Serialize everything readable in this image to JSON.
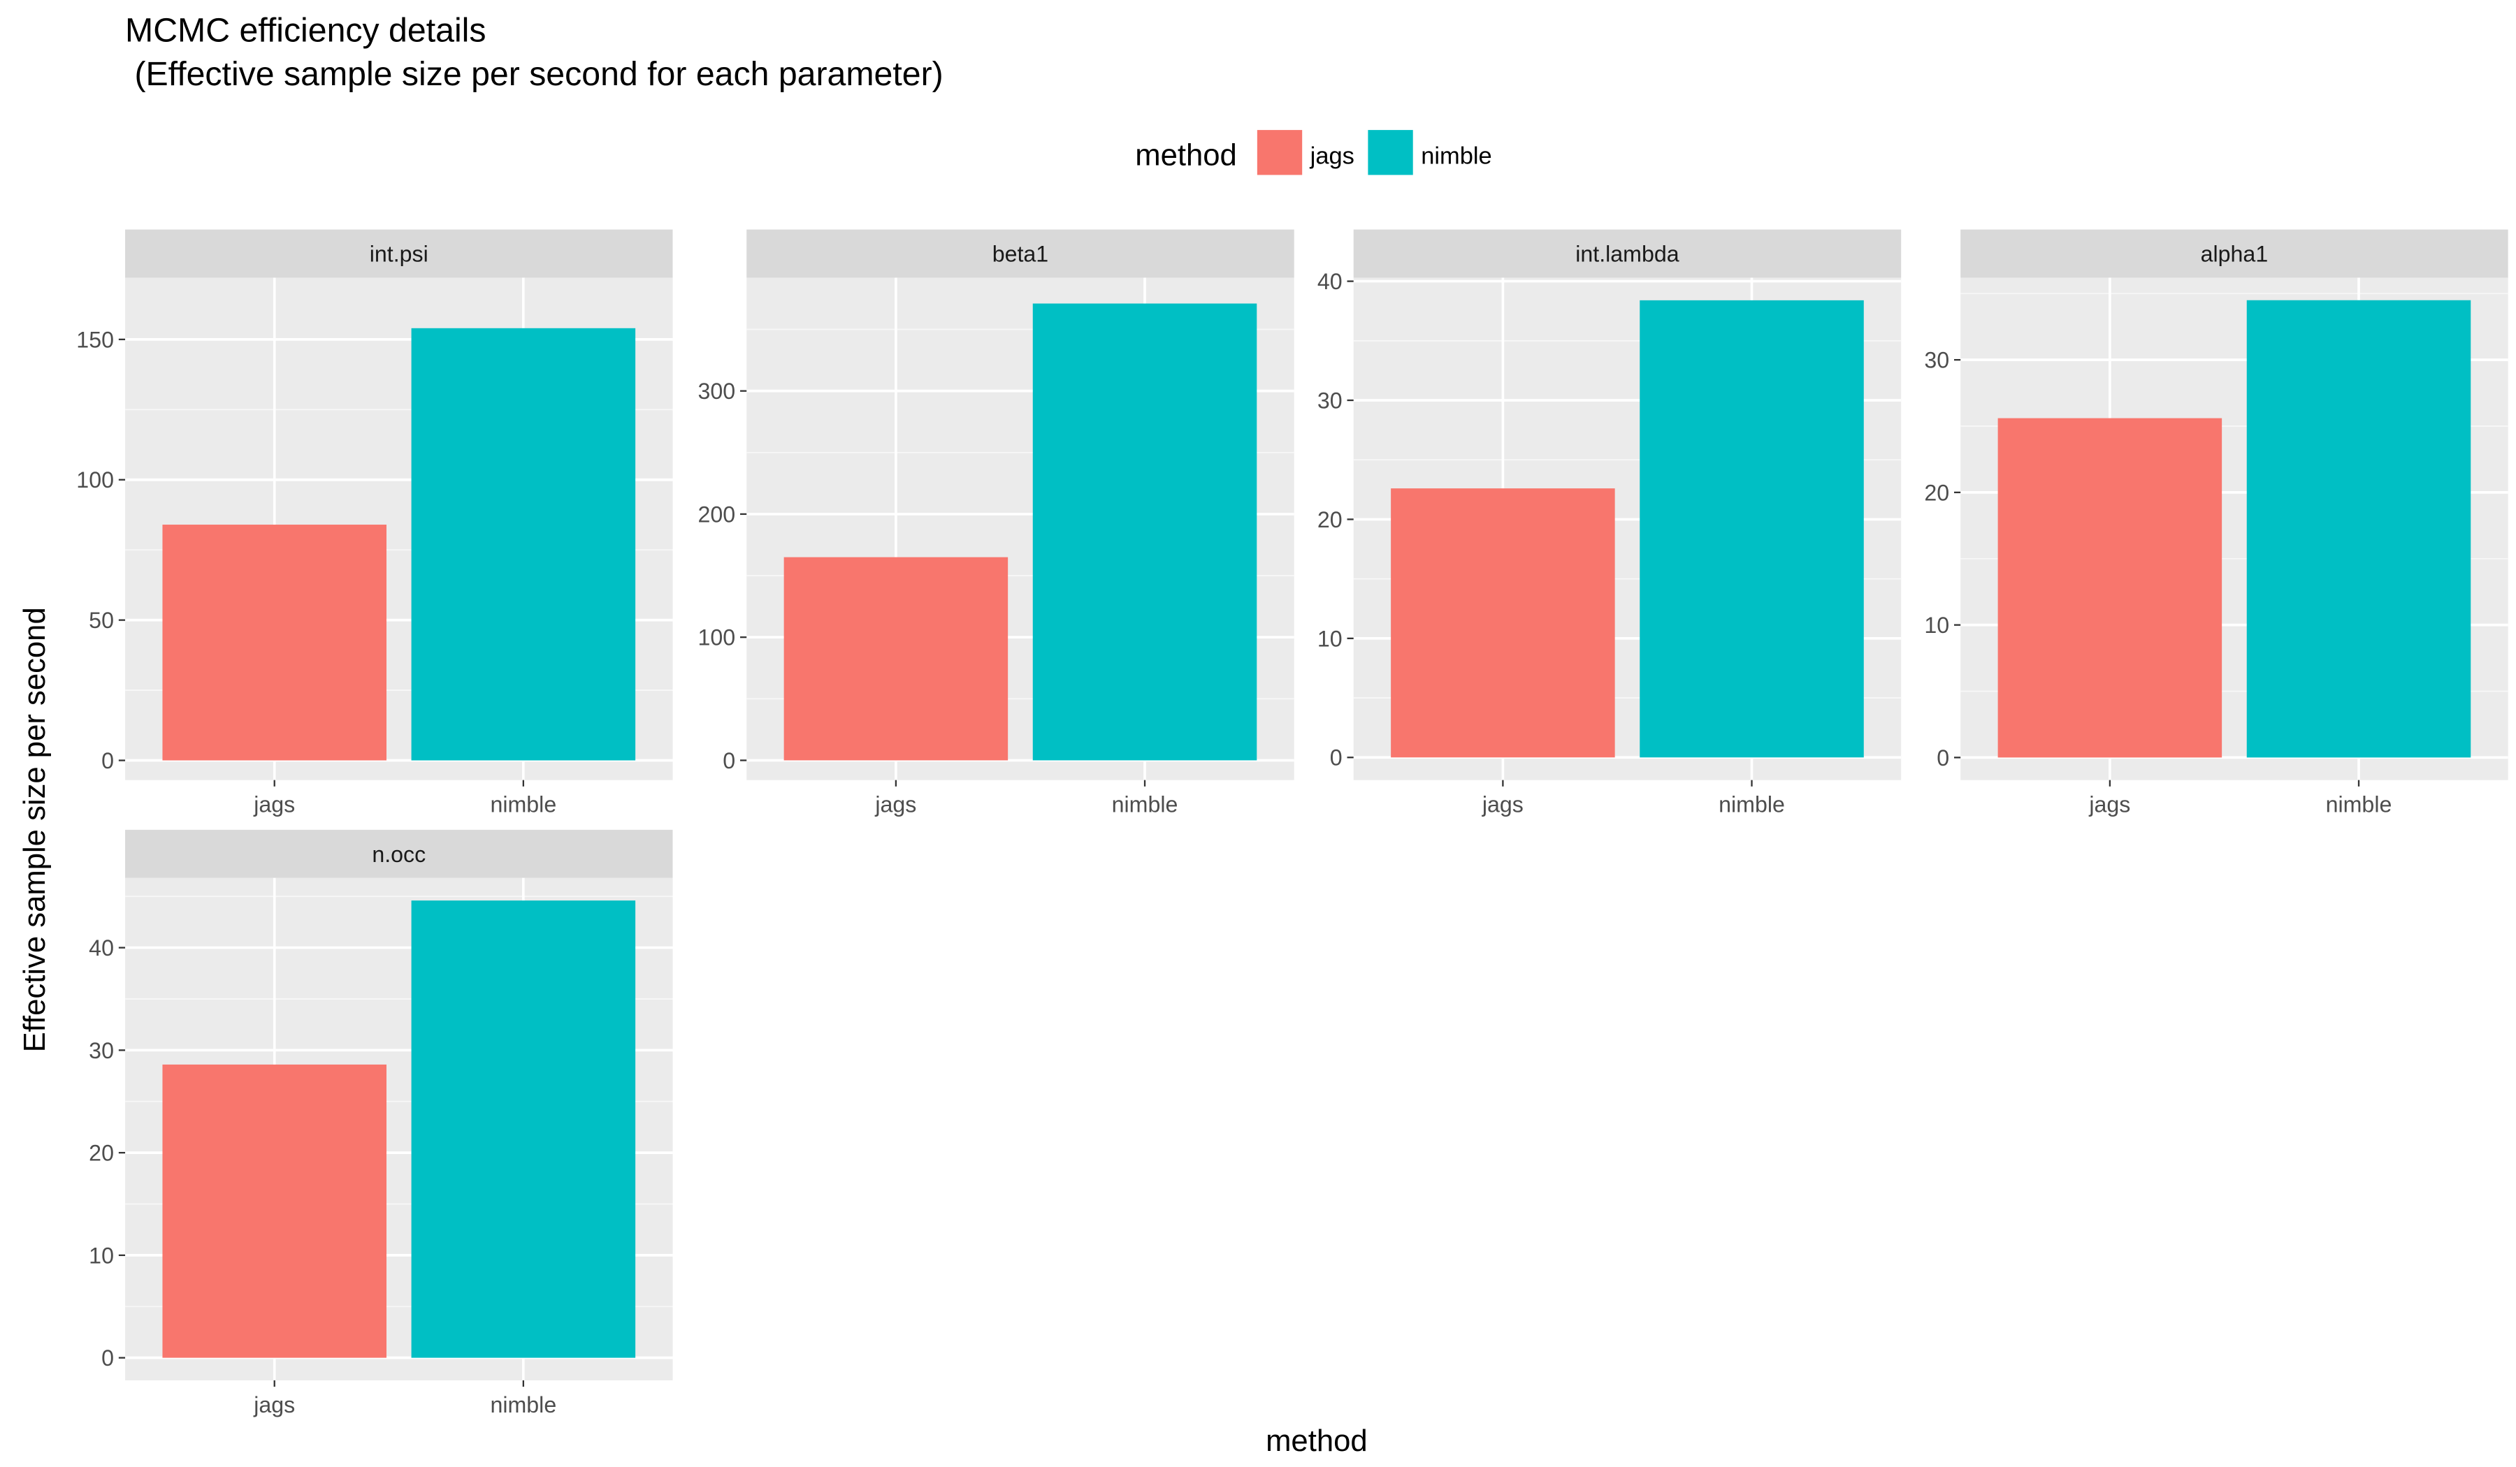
{
  "chart_data": {
    "type": "bar",
    "title": "MCMC efficiency details",
    "subtitle": " (Effective sample size per second for each parameter)",
    "xlabel": "method",
    "ylabel": "Effective sample size per second",
    "categories": [
      "jags",
      "nimble"
    ],
    "legend": {
      "title": "method",
      "position": "top",
      "entries": [
        {
          "name": "jags",
          "color": "#F8766D"
        },
        {
          "name": "nimble",
          "color": "#00BFC4"
        }
      ]
    },
    "grid": true,
    "facet_scales": "free_y",
    "panels": [
      {
        "strip": "int.psi",
        "values": [
          84,
          154
        ],
        "ylim": [
          -7,
          172
        ],
        "yticks": [
          0,
          50,
          100,
          150
        ]
      },
      {
        "strip": "beta1",
        "values": [
          165,
          371
        ],
        "ylim": [
          -16,
          392
        ],
        "yticks": [
          0,
          100,
          200,
          300
        ]
      },
      {
        "strip": "int.lambda",
        "values": [
          22.6,
          38.4
        ],
        "ylim": [
          -1.9,
          40.3
        ],
        "yticks": [
          0,
          10,
          20,
          30,
          40
        ]
      },
      {
        "strip": "alpha1",
        "values": [
          25.6,
          34.5
        ],
        "ylim": [
          -1.7,
          36.2
        ],
        "yticks": [
          0,
          10,
          20,
          30
        ]
      },
      {
        "strip": "n.occ",
        "values": [
          28.6,
          44.6
        ],
        "ylim": [
          -2.2,
          46.8
        ],
        "yticks": [
          0,
          10,
          20,
          30,
          40
        ]
      }
    ]
  }
}
